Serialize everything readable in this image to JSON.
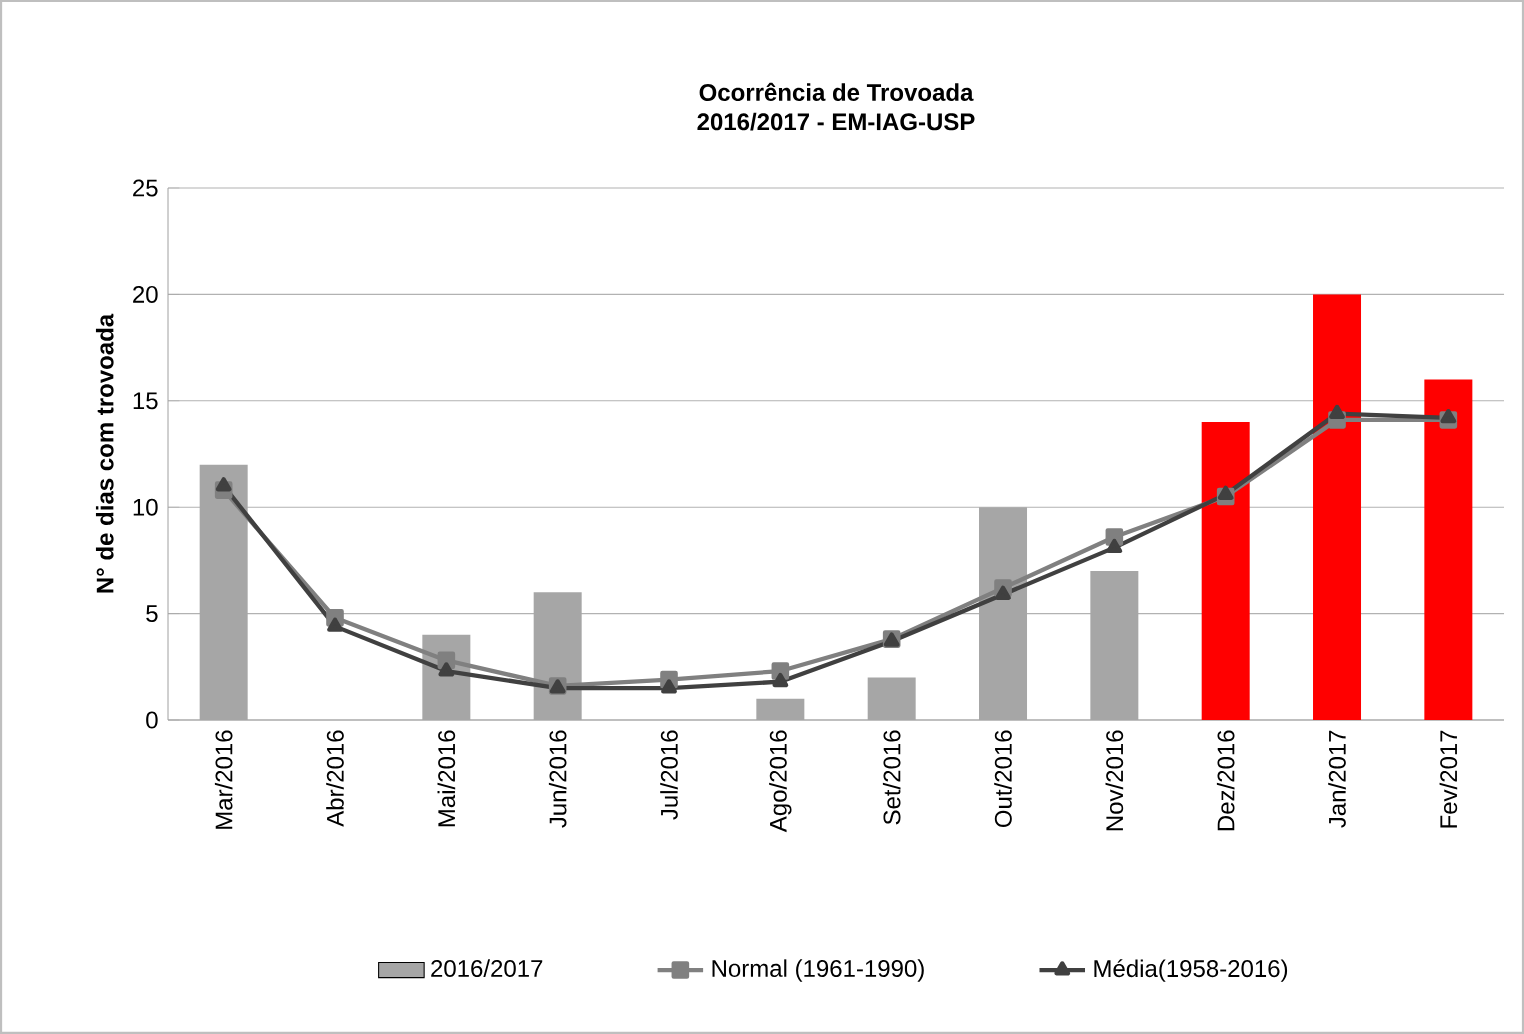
{
  "chart_data": {
    "type": "bar",
    "title": "Ocorrência de Trovoada",
    "subtitle": "2016/2017 - EM-IAG-USP",
    "ylabel": "N° de dias com trovoada",
    "categories": [
      "Mar/2016",
      "Abr/2016",
      "Mai/2016",
      "Jun/2016",
      "Jul/2016",
      "Ago/2016",
      "Set/2016",
      "Out/2016",
      "Nov/2016",
      "Dez/2016",
      "Jan/2017",
      "Fev/2017"
    ],
    "series": [
      {
        "name": "2016/2017",
        "color": "#a6a6a6",
        "colors": [
          "#a6a6a6",
          "#a6a6a6",
          "#a6a6a6",
          "#a6a6a6",
          "#a6a6a6",
          "#a6a6a6",
          "#a6a6a6",
          "#a6a6a6",
          "#a6a6a6",
          "#ff0000",
          "#ff0000",
          "#ff0000"
        ],
        "values": [
          12,
          0,
          4,
          6,
          0,
          1,
          2,
          10,
          7,
          14,
          20,
          16
        ]
      },
      {
        "name": "Normal (1961-1990)",
        "type": "line",
        "color": "#808080",
        "marker": "square",
        "values": [
          10.8,
          4.8,
          2.8,
          1.6,
          1.9,
          2.3,
          3.8,
          6.2,
          8.6,
          10.5,
          14.1,
          14.1
        ]
      },
      {
        "name": "Média(1958-2016)",
        "type": "line",
        "color": "#404040",
        "marker": "triangle",
        "values": [
          11.0,
          4.4,
          2.3,
          1.5,
          1.5,
          1.8,
          3.7,
          5.9,
          8.1,
          10.6,
          14.4,
          14.2
        ]
      }
    ],
    "ylim": [
      0,
      25
    ],
    "yticks": [
      0,
      5,
      10,
      15,
      20,
      25
    ],
    "grid": "y",
    "legend": "bottom"
  }
}
